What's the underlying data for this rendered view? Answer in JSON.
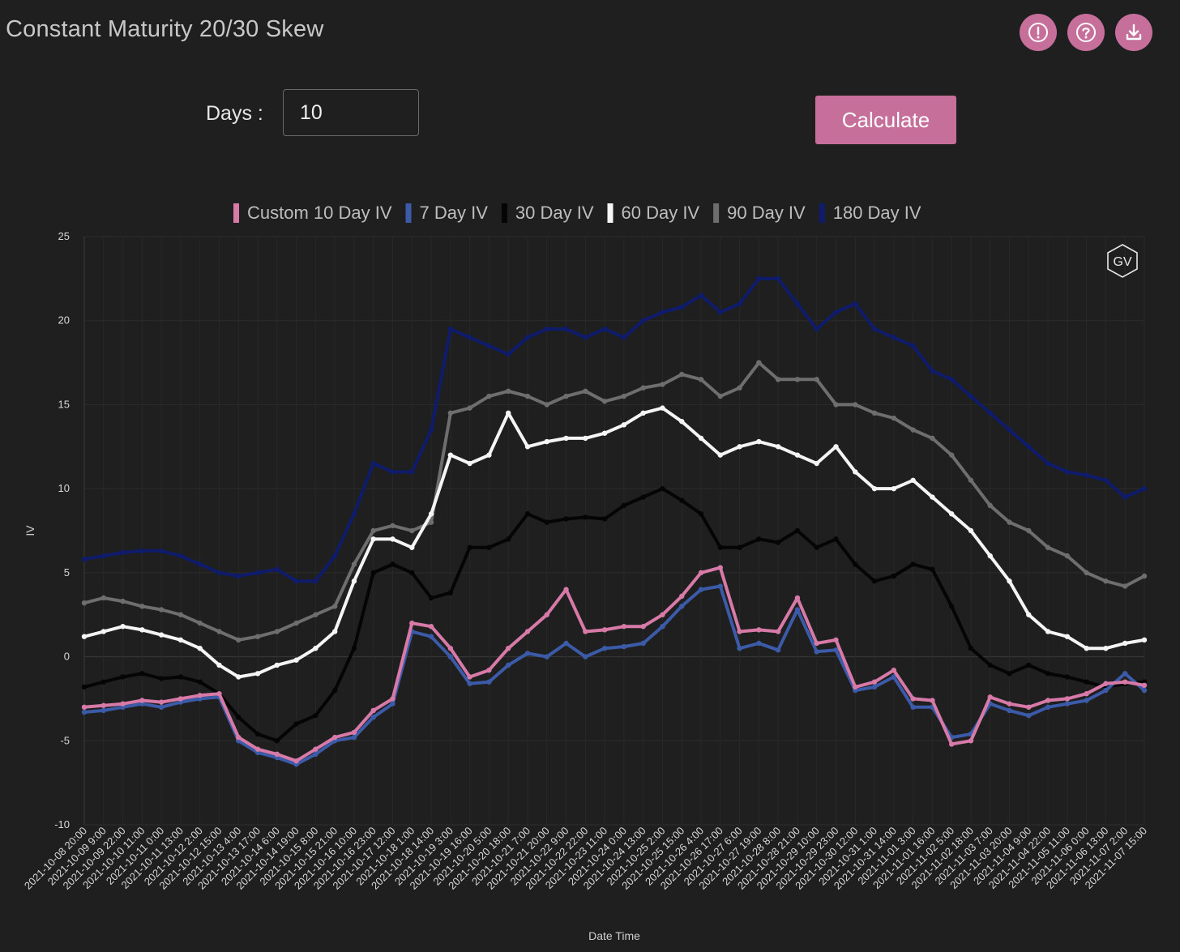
{
  "header": {
    "title": "Constant Maturity 20/30 Skew",
    "icons": [
      "alert-icon",
      "help-icon",
      "download-icon"
    ]
  },
  "controls": {
    "days_label": "Days :",
    "days_value": "10",
    "calculate_label": "Calculate"
  },
  "watermark": "GV",
  "colors": {
    "accent": "#c76f9b",
    "background": "#1f1f1f"
  },
  "chart_data": {
    "type": "line",
    "xlabel": "Date Time",
    "ylabel": "IV",
    "ylim": [
      -10,
      25
    ],
    "yticks": [
      25,
      20,
      15,
      10,
      5,
      0,
      -5,
      -10
    ],
    "grid": true,
    "legend_position": "top-center",
    "x": [
      "2021-10-08 20:00",
      "2021-10-09 9:00",
      "2021-10-09 22:00",
      "2021-10-10 11:00",
      "2021-10-11 0:00",
      "2021-10-11 13:00",
      "2021-10-12 2:00",
      "2021-10-12 15:00",
      "2021-10-13 4:00",
      "2021-10-13 17:00",
      "2021-10-14 6:00",
      "2021-10-14 19:00",
      "2021-10-15 8:00",
      "2021-10-15 21:00",
      "2021-10-16 10:00",
      "2021-10-16 23:00",
      "2021-10-17 12:00",
      "2021-10-18 1:00",
      "2021-10-18 14:00",
      "2021-10-19 3:00",
      "2021-10-19 16:00",
      "2021-10-20 5:00",
      "2021-10-20 18:00",
      "2021-10-21 7:00",
      "2021-10-21 20:00",
      "2021-10-22 9:00",
      "2021-10-22 22:00",
      "2021-10-23 11:00",
      "2021-10-24 0:00",
      "2021-10-24 13:00",
      "2021-10-25 2:00",
      "2021-10-25 15:00",
      "2021-10-26 4:00",
      "2021-10-26 17:00",
      "2021-10-27 6:00",
      "2021-10-27 19:00",
      "2021-10-28 8:00",
      "2021-10-28 21:00",
      "2021-10-29 10:00",
      "2021-10-29 23:00",
      "2021-10-30 12:00",
      "2021-10-31 1:00",
      "2021-10-31 14:00",
      "2021-11-01 3:00",
      "2021-11-01 16:00",
      "2021-11-02 5:00",
      "2021-11-02 18:00",
      "2021-11-03 7:00",
      "2021-11-03 20:00",
      "2021-11-04 9:00",
      "2021-11-04 22:00",
      "2021-11-05 11:00",
      "2021-11-06 0:00",
      "2021-11-06 13:00",
      "2021-11-07 2:00",
      "2021-11-07 15:00"
    ],
    "series": [
      {
        "name": "Custom 10 Day IV",
        "color": "#d77aa8",
        "values": [
          -3.0,
          -2.9,
          -2.8,
          -2.6,
          -2.7,
          -2.5,
          -2.3,
          -2.2,
          -4.8,
          -5.5,
          -5.8,
          -6.2,
          -5.5,
          -4.8,
          -4.5,
          -3.2,
          -2.5,
          2.0,
          1.8,
          0.5,
          -1.2,
          -0.8,
          0.5,
          1.5,
          2.5,
          4.0,
          1.5,
          1.6,
          1.8,
          1.8,
          2.5,
          3.6,
          5.0,
          5.3,
          1.5,
          1.6,
          1.5,
          3.5,
          0.8,
          1.0,
          -1.8,
          -1.5,
          -0.8,
          -2.5,
          -2.6,
          -5.2,
          -5.0,
          -2.4,
          -2.8,
          -3.0,
          -2.6,
          -2.5,
          -2.2,
          -1.6,
          -1.5,
          -1.7
        ]
      },
      {
        "name": "7 Day IV",
        "color": "#3b5aa8",
        "values": [
          -3.3,
          -3.2,
          -3.0,
          -2.8,
          -3.0,
          -2.7,
          -2.5,
          -2.4,
          -5.0,
          -5.7,
          -6.0,
          -6.4,
          -5.8,
          -5.0,
          -4.8,
          -3.6,
          -2.8,
          1.5,
          1.2,
          0.0,
          -1.6,
          -1.5,
          -0.5,
          0.2,
          0.0,
          0.8,
          0.0,
          0.5,
          0.6,
          0.8,
          1.8,
          3.0,
          4.0,
          4.2,
          0.5,
          0.8,
          0.4,
          2.8,
          0.3,
          0.4,
          -2.0,
          -1.8,
          -1.2,
          -3.0,
          -3.0,
          -4.8,
          -4.6,
          -2.8,
          -3.2,
          -3.5,
          -3.0,
          -2.8,
          -2.6,
          -2.0,
          -1.0,
          -2.0
        ]
      },
      {
        "name": "30 Day IV",
        "color": "#050505",
        "values": [
          -1.8,
          -1.5,
          -1.2,
          -1.0,
          -1.3,
          -1.2,
          -1.5,
          -2.2,
          -3.6,
          -4.6,
          -5.0,
          -4.0,
          -3.5,
          -2.0,
          0.5,
          5.0,
          5.5,
          5.0,
          3.5,
          3.8,
          6.5,
          6.5,
          7.0,
          8.5,
          8.0,
          8.2,
          8.3,
          8.2,
          9.0,
          9.5,
          10.0,
          9.3,
          8.5,
          6.5,
          6.5,
          7.0,
          6.8,
          7.5,
          6.5,
          7.0,
          5.5,
          4.5,
          4.8,
          5.5,
          5.2,
          3.0,
          0.5,
          -0.5,
          -1.0,
          -0.5,
          -1.0,
          -1.2,
          -1.5,
          -1.8,
          -1.6,
          -1.5
        ]
      },
      {
        "name": "60 Day IV",
        "color": "#f5f5f5",
        "values": [
          1.2,
          1.5,
          1.8,
          1.6,
          1.3,
          1.0,
          0.5,
          -0.5,
          -1.2,
          -1.0,
          -0.5,
          -0.2,
          0.5,
          1.5,
          4.5,
          7.0,
          7.0,
          6.5,
          8.5,
          12.0,
          11.5,
          12.0,
          14.5,
          12.5,
          12.8,
          13.0,
          13.0,
          13.3,
          13.8,
          14.5,
          14.8,
          14.0,
          13.0,
          12.0,
          12.5,
          12.8,
          12.5,
          12.0,
          11.5,
          12.5,
          11.0,
          10.0,
          10.0,
          10.5,
          9.5,
          8.5,
          7.5,
          6.0,
          4.5,
          2.5,
          1.5,
          1.2,
          0.5,
          0.5,
          0.8,
          1.0
        ]
      },
      {
        "name": "90 Day IV",
        "color": "#6e6e6e",
        "values": [
          3.2,
          3.5,
          3.3,
          3.0,
          2.8,
          2.5,
          2.0,
          1.5,
          1.0,
          1.2,
          1.5,
          2.0,
          2.5,
          3.0,
          5.5,
          7.5,
          7.8,
          7.5,
          8.0,
          14.5,
          14.8,
          15.5,
          15.8,
          15.5,
          15.0,
          15.5,
          15.8,
          15.2,
          15.5,
          16.0,
          16.2,
          16.8,
          16.5,
          15.5,
          16.0,
          17.5,
          16.5,
          16.5,
          16.5,
          15.0,
          15.0,
          14.5,
          14.2,
          13.5,
          13.0,
          12.0,
          10.5,
          9.0,
          8.0,
          7.5,
          6.5,
          6.0,
          5.0,
          4.5,
          4.2,
          4.8
        ]
      },
      {
        "name": "180 Day IV",
        "color": "#0f1b6b",
        "values": [
          5.8,
          6.0,
          6.2,
          6.3,
          6.3,
          6.0,
          5.5,
          5.0,
          4.8,
          5.0,
          5.2,
          4.5,
          4.5,
          6.0,
          8.5,
          11.5,
          11.0,
          11.0,
          13.5,
          19.5,
          19.0,
          18.5,
          18.0,
          19.0,
          19.5,
          19.5,
          19.0,
          19.5,
          19.0,
          20.0,
          20.5,
          20.8,
          21.5,
          20.5,
          21.0,
          22.5,
          22.5,
          21.0,
          19.5,
          20.5,
          21.0,
          19.5,
          19.0,
          18.5,
          17.0,
          16.5,
          15.5,
          14.5,
          13.5,
          12.5,
          11.5,
          11.0,
          10.8,
          10.5,
          9.5,
          10.0
        ]
      }
    ]
  }
}
